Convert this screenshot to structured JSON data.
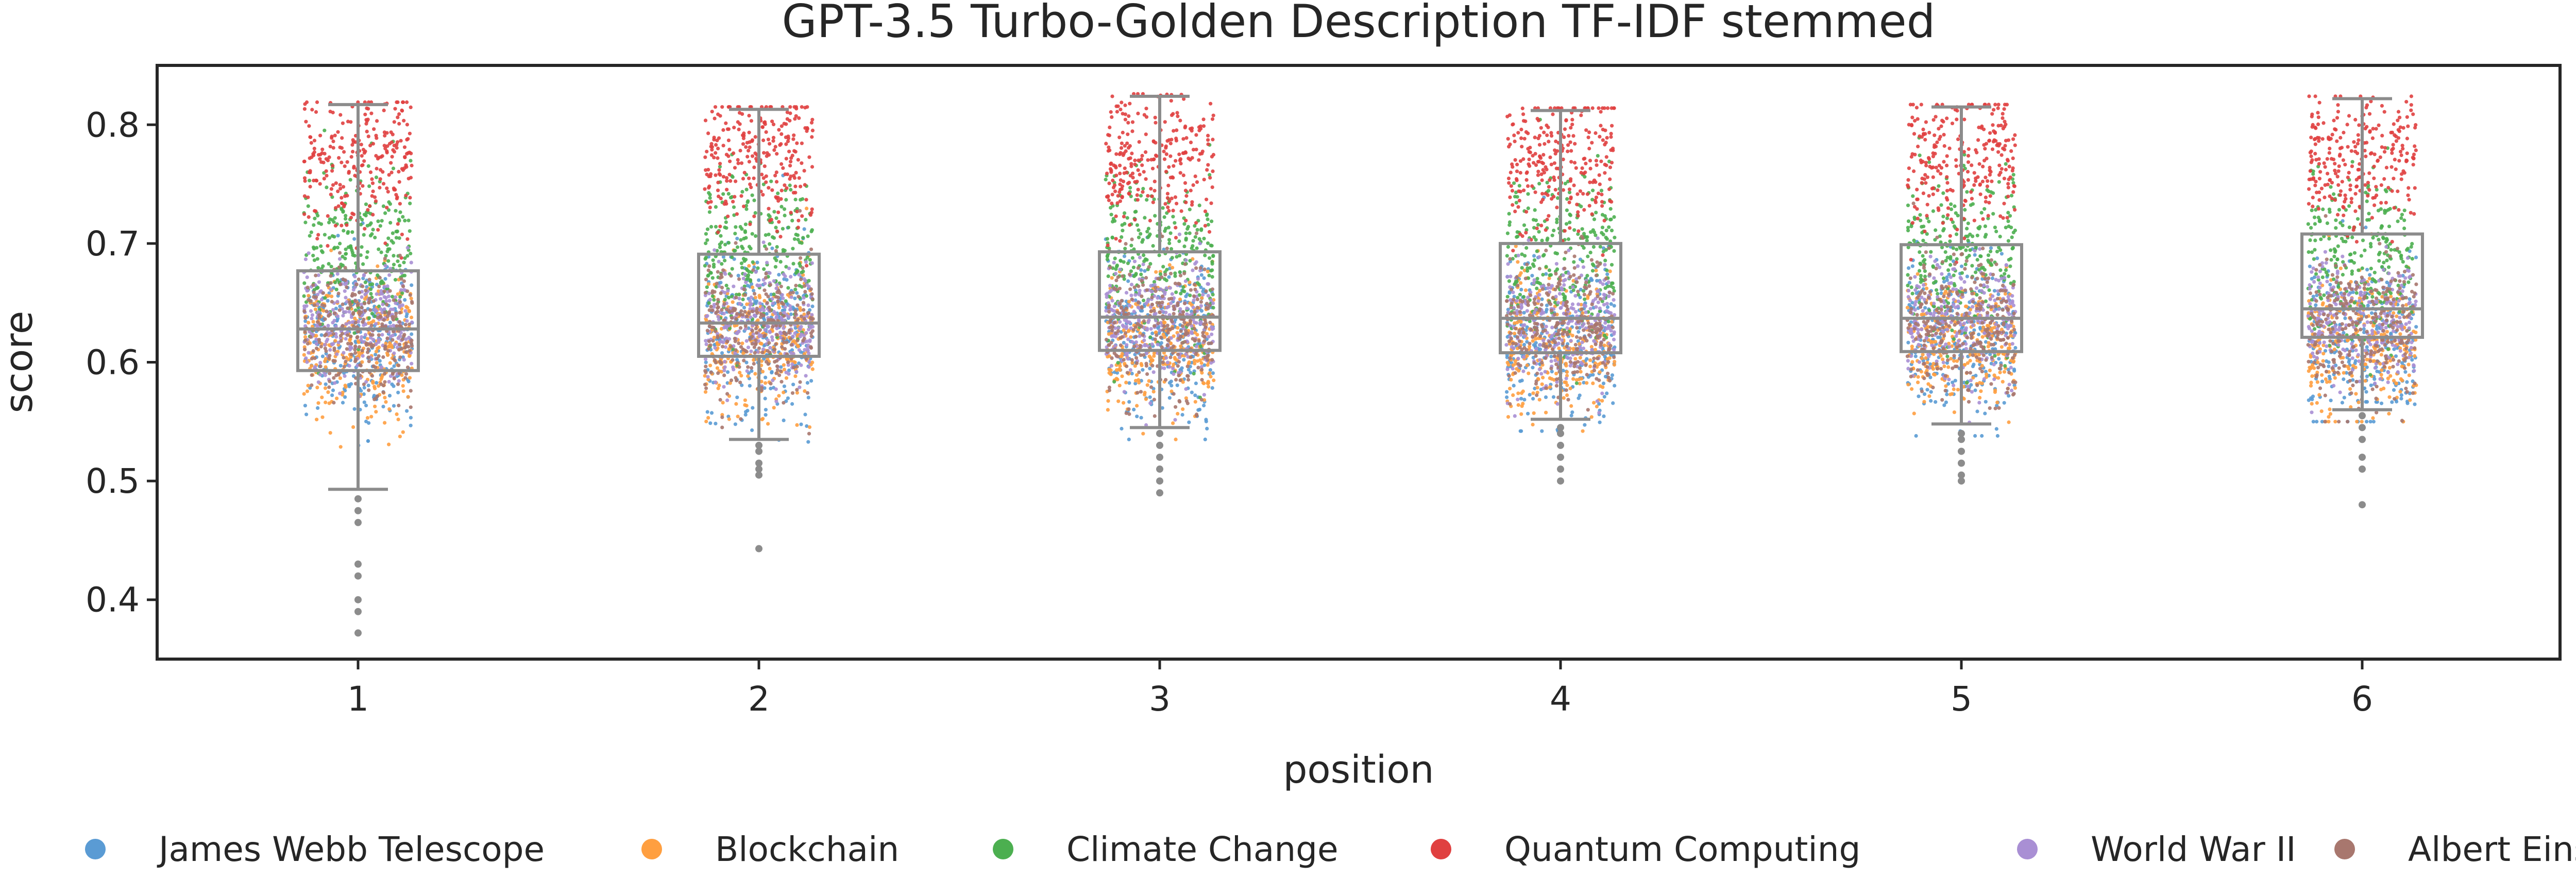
{
  "chart_data": {
    "type": "box-strip",
    "title": "GPT-3.5 Turbo-Golden Description TF-IDF stemmed",
    "xlabel": "position",
    "ylabel": "score",
    "categories": [
      "1",
      "2",
      "3",
      "4",
      "5",
      "6"
    ],
    "ylim": [
      0.35,
      0.85
    ],
    "yticks": [
      "0.4",
      "0.5",
      "0.6",
      "0.7",
      "0.8"
    ],
    "grid": false,
    "legend_position": "bottom",
    "boxes": [
      {
        "position": "1",
        "whisker_low": 0.493,
        "q1": 0.593,
        "median": 0.628,
        "q3": 0.677,
        "whisker_high": 0.817,
        "outliers": [
          0.485,
          0.475,
          0.465,
          0.43,
          0.42,
          0.4,
          0.39,
          0.372
        ]
      },
      {
        "position": "2",
        "whisker_low": 0.535,
        "q1": 0.605,
        "median": 0.633,
        "q3": 0.691,
        "whisker_high": 0.813,
        "outliers": [
          0.53,
          0.525,
          0.515,
          0.51,
          0.505,
          0.443
        ]
      },
      {
        "position": "3",
        "whisker_low": 0.545,
        "q1": 0.61,
        "median": 0.638,
        "q3": 0.693,
        "whisker_high": 0.824,
        "outliers": [
          0.54,
          0.53,
          0.52,
          0.51,
          0.5,
          0.49
        ]
      },
      {
        "position": "4",
        "whisker_low": 0.552,
        "q1": 0.608,
        "median": 0.637,
        "q3": 0.7,
        "whisker_high": 0.812,
        "outliers": [
          0.545,
          0.54,
          0.53,
          0.52,
          0.51,
          0.5
        ]
      },
      {
        "position": "5",
        "whisker_low": 0.548,
        "q1": 0.609,
        "median": 0.637,
        "q3": 0.699,
        "whisker_high": 0.815,
        "outliers": [
          0.54,
          0.535,
          0.525,
          0.515,
          0.505,
          0.5
        ]
      },
      {
        "position": "6",
        "whisker_low": 0.56,
        "q1": 0.621,
        "median": 0.645,
        "q3": 0.708,
        "whisker_high": 0.822,
        "outliers": [
          0.555,
          0.545,
          0.535,
          0.52,
          0.51,
          0.48
        ]
      }
    ],
    "series": [
      {
        "name": "James Webb Telescope",
        "color": "#5a9bd4",
        "distribution": {
          "center": 0.62,
          "spread": 0.035
        }
      },
      {
        "name": "Blockchain",
        "color": "#ff9f40",
        "distribution": {
          "center": 0.615,
          "spread": 0.03
        }
      },
      {
        "name": "Climate Change",
        "color": "#4caf50",
        "distribution": {
          "center": 0.69,
          "spread": 0.035
        }
      },
      {
        "name": "Quantum Computing",
        "color": "#e04040",
        "distribution": {
          "center": 0.77,
          "spread": 0.03
        }
      },
      {
        "name": "World War II",
        "color": "#a98fd4",
        "distribution": {
          "center": 0.635,
          "spread": 0.025
        }
      },
      {
        "name": "Albert Einstein",
        "color": "#a8776e",
        "distribution": {
          "center": 0.63,
          "spread": 0.03
        }
      }
    ],
    "box_color": "#8c8c8c"
  }
}
